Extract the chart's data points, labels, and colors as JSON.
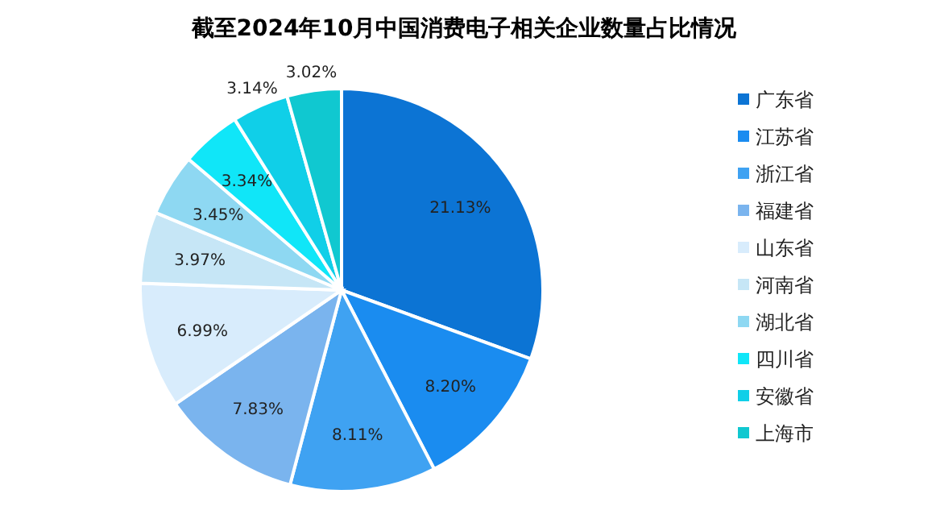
{
  "chart_data": {
    "type": "pie",
    "title": "截至2024年10月中国消费电子相关企业数量占比情况",
    "categories": [
      "广东省",
      "江苏省",
      "浙江省",
      "福建省",
      "山东省",
      "河南省",
      "湖北省",
      "四川省",
      "安徽省",
      "上海市"
    ],
    "values": [
      21.13,
      8.2,
      8.11,
      7.83,
      6.99,
      3.97,
      3.45,
      3.34,
      3.14,
      3.02
    ],
    "value_labels": [
      "21.13%",
      "8.20%",
      "8.11%",
      "7.83%",
      "6.99%",
      "3.97%",
      "3.45%",
      "3.34%",
      "3.14%",
      "3.02%"
    ],
    "colors": [
      "#0c74d4",
      "#1a8cf0",
      "#3fa2f2",
      "#7ab4ee",
      "#d8ecfc",
      "#c6e6f6",
      "#8ed8f2",
      "#10e6f8",
      "#10cfe8",
      "#10c8d0"
    ],
    "legend": "right"
  }
}
